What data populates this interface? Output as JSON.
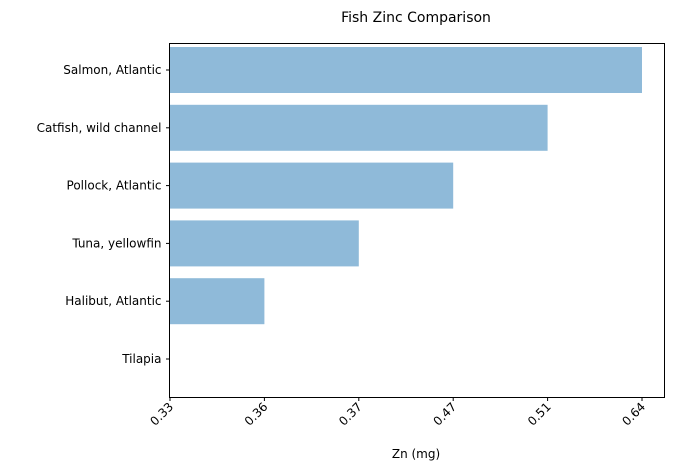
{
  "chart_data": {
    "type": "bar",
    "orientation": "horizontal",
    "title": "Fish Zinc Comparison",
    "xlabel": "Zn (mg)",
    "ylabel": "",
    "categories": [
      "Salmon, Atlantic",
      "Catfish, wild channel",
      "Pollock, Atlantic",
      "Tuna, yellowfin",
      "Halibut, Atlantic",
      "Tilapia"
    ],
    "values": [
      0.64,
      0.51,
      0.47,
      0.37,
      0.36,
      0.33
    ],
    "x_tick_labels": [
      "0.33",
      "0.36",
      "0.37",
      "0.47",
      "0.51",
      "0.64"
    ],
    "x_axis_scale": "categorical (ticks at sorted values, evenly spaced)",
    "grid": false,
    "bar_color": "#8fbad9"
  }
}
